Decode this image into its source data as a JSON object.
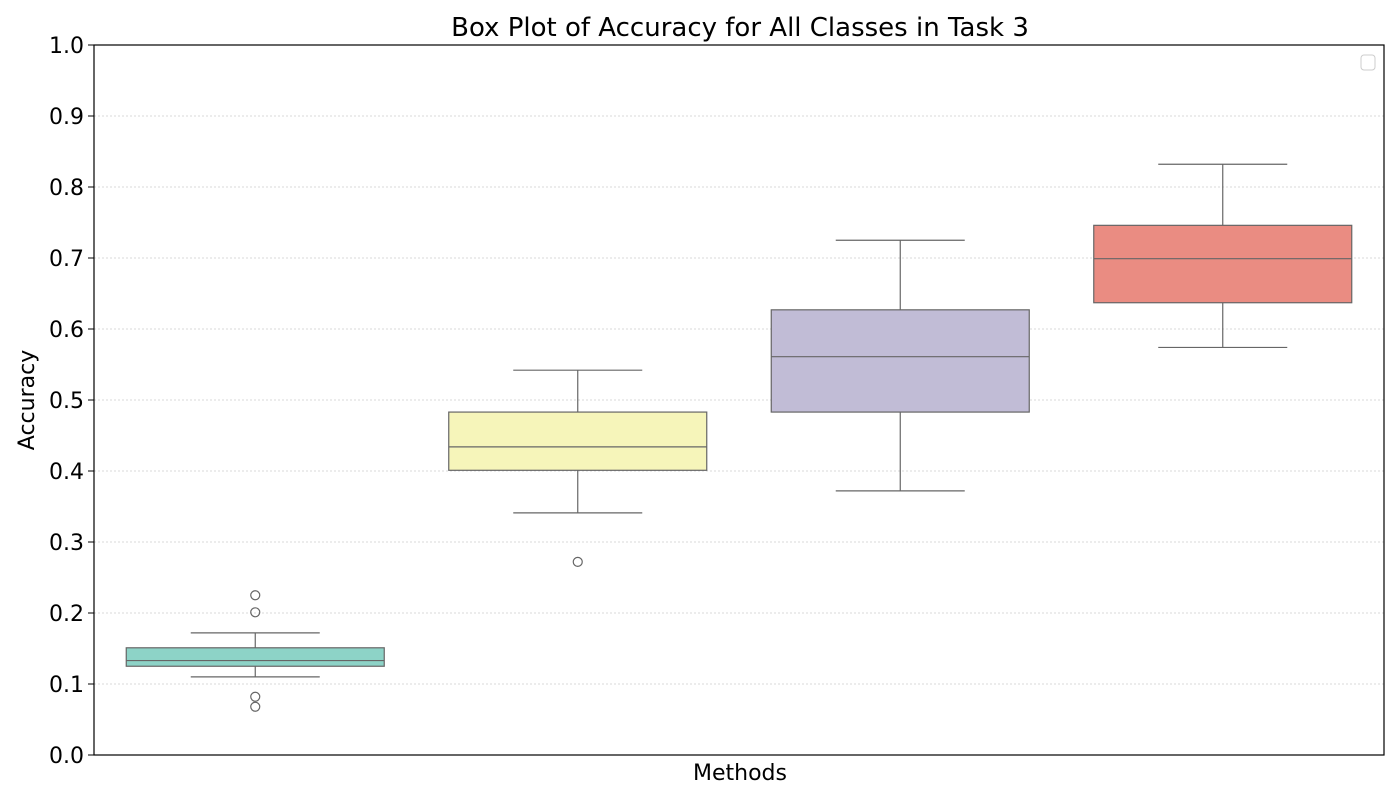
{
  "chart_data": {
    "type": "box",
    "title": "Box Plot of Accuracy for All Classes in Task 3",
    "xlabel": "Methods",
    "ylabel": "Accuracy",
    "ylim": [
      0,
      1.0
    ],
    "yticks": [
      "0.0",
      "0.1",
      "0.2",
      "0.3",
      "0.4",
      "0.5",
      "0.6",
      "0.7",
      "0.8",
      "0.9",
      "1.0"
    ],
    "grid": "horizontal dotted",
    "legend": "top-right (empty)",
    "series": [
      {
        "color": "#8dd3c7",
        "whisker_low": 0.11,
        "q1": 0.125,
        "median": 0.133,
        "q3": 0.151,
        "whisker_high": 0.172,
        "outliers": [
          0.225,
          0.201,
          0.082,
          0.068
        ]
      },
      {
        "color": "#f6f5ba",
        "whisker_low": 0.341,
        "q1": 0.401,
        "median": 0.434,
        "q3": 0.483,
        "whisker_high": 0.542,
        "outliers": [
          0.272
        ]
      },
      {
        "color": "#c1bcd6",
        "whisker_low": 0.372,
        "q1": 0.483,
        "median": 0.561,
        "q3": 0.627,
        "whisker_high": 0.725,
        "outliers": []
      },
      {
        "color": "#ea8c82",
        "whisker_low": 0.574,
        "q1": 0.637,
        "median": 0.699,
        "q3": 0.746,
        "whisker_high": 0.832,
        "outliers": []
      }
    ]
  }
}
